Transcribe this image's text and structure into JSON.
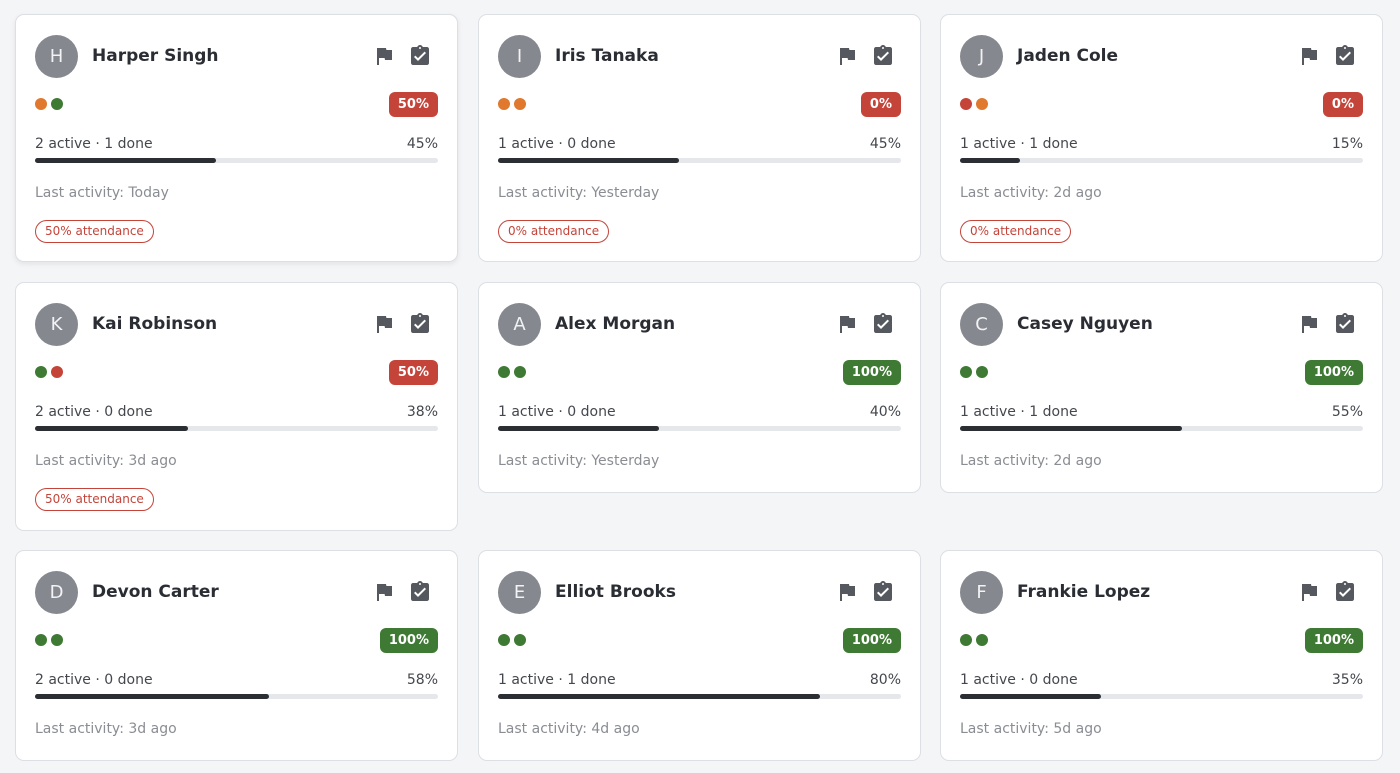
{
  "colors": {
    "danger": "#c5443a",
    "success": "#3f7a34",
    "warning": "#e0782e",
    "bar": "#2b2e33",
    "icon": "#55585e"
  },
  "icons": {
    "flag": "flag-icon",
    "clipboard": "clipboard-check-icon"
  },
  "cards": [
    {
      "initial": "H",
      "name": "Harper Singh",
      "dots": [
        "warning",
        "success"
      ],
      "badge": "50%",
      "badge_status": "danger",
      "stats": "2 active · 1 done",
      "progress_label": "45%",
      "progress": 0.45,
      "activity": "Last activity: Today",
      "attendance": "50% attendance"
    },
    {
      "initial": "I",
      "name": "Iris Tanaka",
      "dots": [
        "warning",
        "warning"
      ],
      "badge": "0%",
      "badge_status": "danger",
      "stats": "1 active · 0 done",
      "progress_label": "45%",
      "progress": 0.45,
      "activity": "Last activity: Yesterday",
      "attendance": "0% attendance"
    },
    {
      "initial": "J",
      "name": "Jaden Cole",
      "dots": [
        "danger",
        "warning"
      ],
      "badge": "0%",
      "badge_status": "danger",
      "stats": "1 active · 1 done",
      "progress_label": "15%",
      "progress": 0.15,
      "activity": "Last activity: 2d ago",
      "attendance": "0% attendance"
    },
    {
      "initial": "K",
      "name": "Kai Robinson",
      "dots": [
        "success",
        "danger"
      ],
      "badge": "50%",
      "badge_status": "danger",
      "stats": "2 active · 0 done",
      "progress_label": "38%",
      "progress": 0.38,
      "activity": "Last activity: 3d ago",
      "attendance": "50% attendance"
    },
    {
      "initial": "A",
      "name": "Alex Morgan",
      "dots": [
        "success",
        "success"
      ],
      "badge": "100%",
      "badge_status": "success",
      "stats": "1 active · 0 done",
      "progress_label": "40%",
      "progress": 0.4,
      "activity": "Last activity: Yesterday"
    },
    {
      "initial": "C",
      "name": "Casey Nguyen",
      "dots": [
        "success",
        "success"
      ],
      "badge": "100%",
      "badge_status": "success",
      "stats": "1 active · 1 done",
      "progress_label": "55%",
      "progress": 0.55,
      "activity": "Last activity: 2d ago"
    },
    {
      "initial": "D",
      "name": "Devon Carter",
      "dots": [
        "success",
        "success"
      ],
      "badge": "100%",
      "badge_status": "success",
      "stats": "2 active · 0 done",
      "progress_label": "58%",
      "progress": 0.58,
      "activity": "Last activity: 3d ago"
    },
    {
      "initial": "E",
      "name": "Elliot Brooks",
      "dots": [
        "success",
        "success"
      ],
      "badge": "100%",
      "badge_status": "success",
      "stats": "1 active · 1 done",
      "progress_label": "80%",
      "progress": 0.8,
      "activity": "Last activity: 4d ago"
    },
    {
      "initial": "F",
      "name": "Frankie Lopez",
      "dots": [
        "success",
        "success"
      ],
      "badge": "100%",
      "badge_status": "success",
      "stats": "1 active · 0 done",
      "progress_label": "35%",
      "progress": 0.35,
      "activity": "Last activity: 5d ago"
    }
  ]
}
